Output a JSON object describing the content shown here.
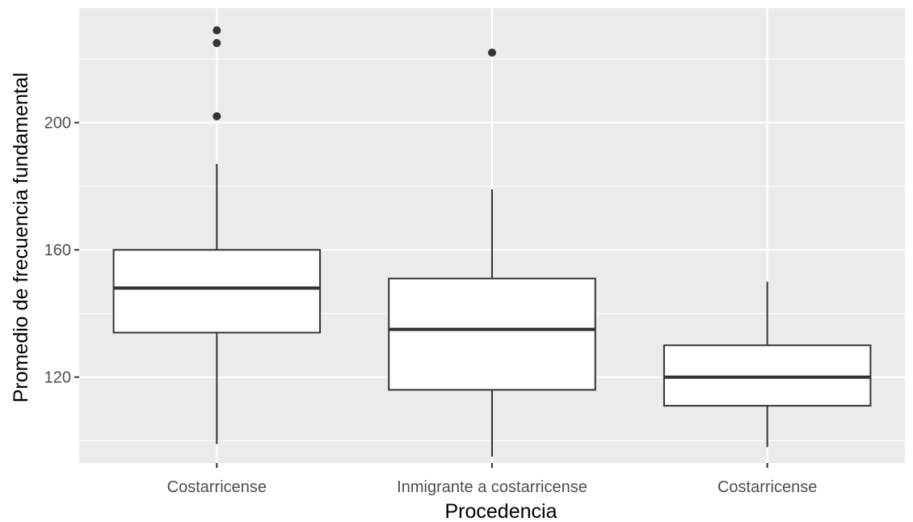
{
  "chart_data": {
    "type": "boxplot",
    "title": "",
    "xlabel": "Procedencia",
    "ylabel": "Promedio de frecuencia fundamental",
    "ylim": [
      93,
      236
    ],
    "yticks": [
      120,
      160,
      200
    ],
    "grid": true,
    "legend": "none",
    "colors": {
      "panel_background": "#ebebeb",
      "grid": "#ffffff",
      "box_fill": "#ffffff",
      "box_stroke": "#333333",
      "outlier": "#333333"
    },
    "categories": [
      "Costarricense",
      "Inmigrante a costarricense",
      "Costarricense"
    ],
    "boxes": [
      {
        "category": "Costarricense",
        "whisker_low": 99,
        "q1": 134,
        "median": 148,
        "q3": 160,
        "whisker_high": 187,
        "outliers": [
          202,
          225,
          229
        ]
      },
      {
        "category": "Inmigrante a costarricense",
        "whisker_low": 95,
        "q1": 116,
        "median": 135,
        "q3": 151,
        "whisker_high": 179,
        "outliers": [
          222
        ]
      },
      {
        "category": "Costarricense",
        "whisker_low": 98,
        "q1": 111,
        "median": 120,
        "q3": 130,
        "whisker_high": 150,
        "outliers": []
      }
    ]
  }
}
